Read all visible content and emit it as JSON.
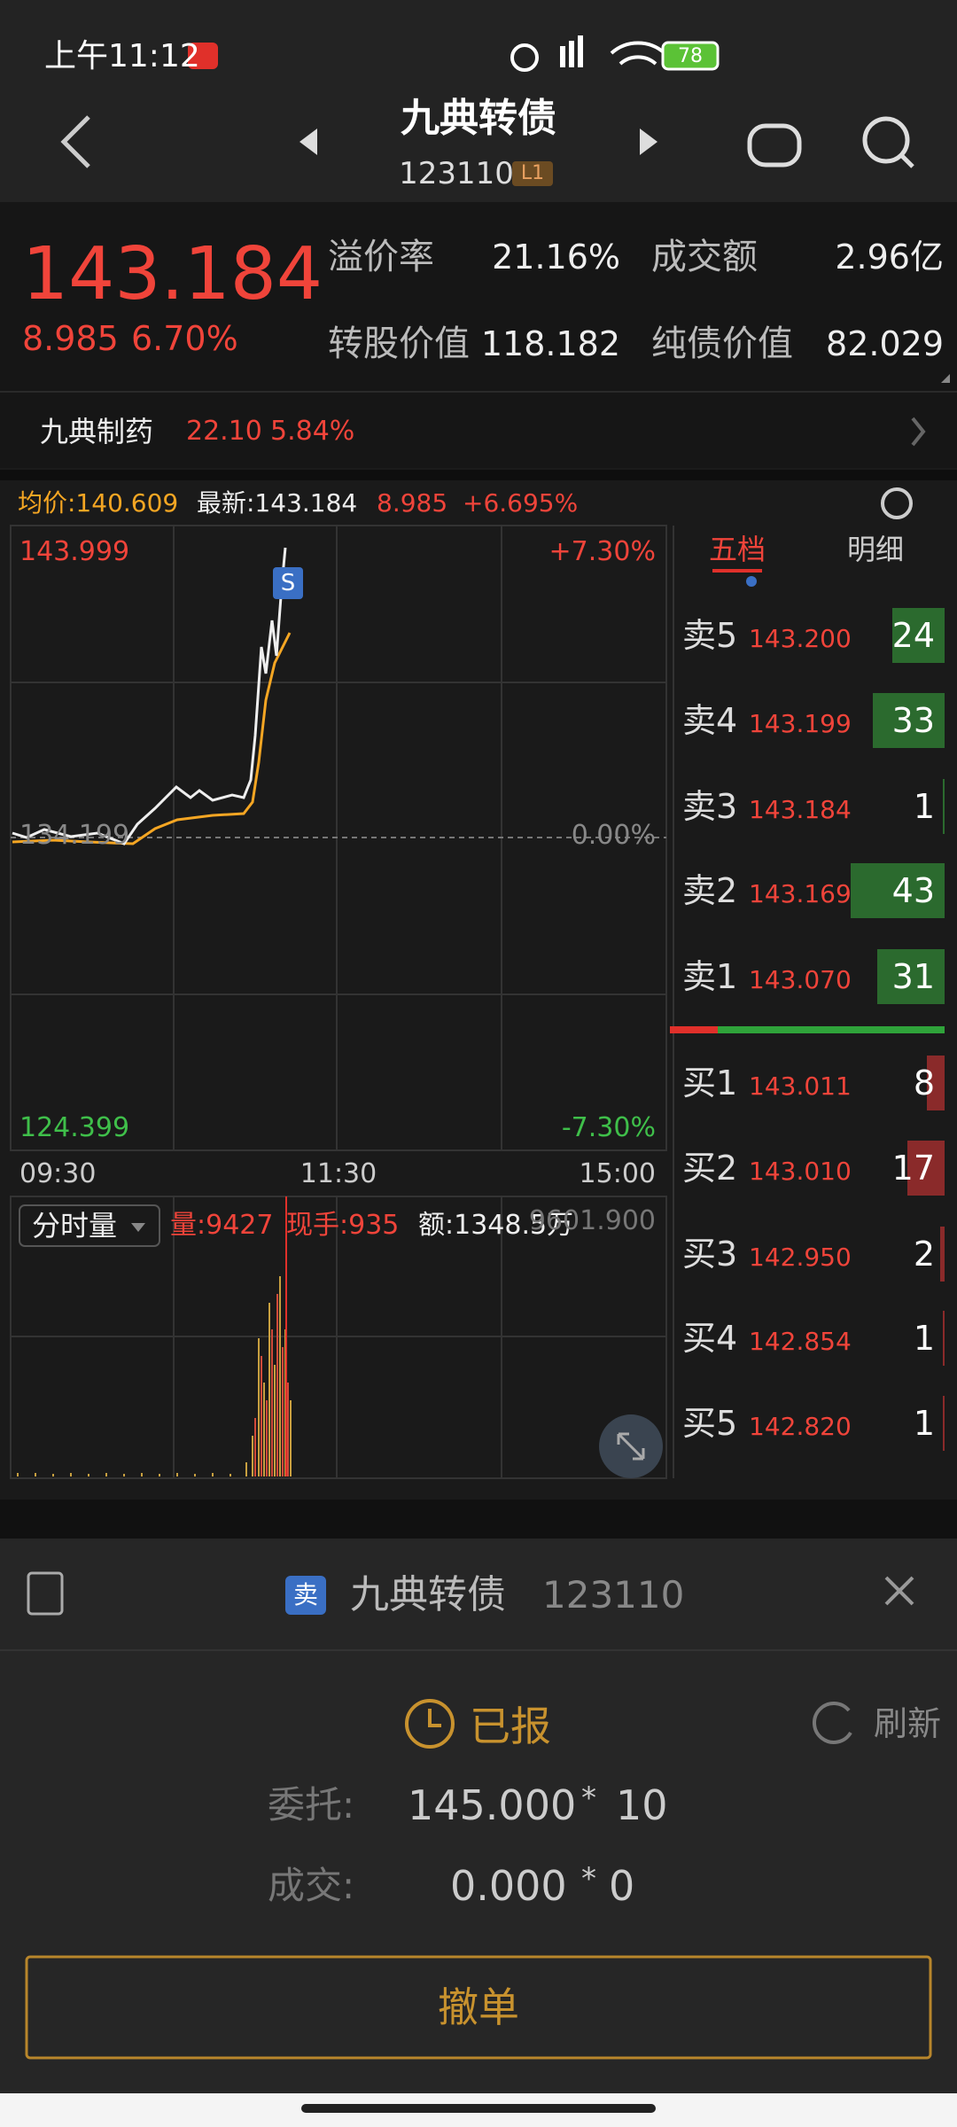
{
  "status_bar": {
    "time": "上午11:12",
    "battery": "78"
  },
  "header": {
    "title": "九典转债",
    "code": "123110",
    "badge": "L1"
  },
  "quote": {
    "price": "143.184",
    "change": "8.985",
    "change_pct": "6.70%",
    "stats": [
      {
        "label": "溢价率",
        "value": "21.16%"
      },
      {
        "label": "成交额",
        "value": "2.96亿"
      },
      {
        "label": "转股价值",
        "value": "118.182"
      },
      {
        "label": "纯债价值",
        "value": "82.029"
      }
    ]
  },
  "underlying": {
    "name": "九典制药",
    "price": "22.10",
    "change_pct": "5.84%"
  },
  "chart": {
    "info": {
      "avg": "均价:140.609",
      "latest": "最新:143.184",
      "change": "8.985",
      "change_pct": "+6.695%"
    },
    "y_labels": {
      "top": "143.999",
      "top_pct": "+7.30%",
      "mid": "134.199",
      "mid_pct": "0.00%",
      "bottom": "124.399",
      "bottom_pct": "-7.30%"
    },
    "x_labels": [
      "09:30",
      "11:30",
      "15:00"
    ],
    "volume": {
      "mode": "分时量",
      "volume": "量:9427",
      "current": "现手:935",
      "amount": "额:1348.5万",
      "max": "9601.900"
    }
  },
  "order_book": {
    "tabs": [
      "五档",
      "明细"
    ],
    "sell": [
      {
        "label": "卖5",
        "price": "143.200",
        "qty": 24
      },
      {
        "label": "卖4",
        "price": "143.199",
        "qty": 33
      },
      {
        "label": "卖3",
        "price": "143.184",
        "qty": 1
      },
      {
        "label": "卖2",
        "price": "143.169",
        "qty": 43
      },
      {
        "label": "卖1",
        "price": "143.070",
        "qty": 31
      }
    ],
    "buy": [
      {
        "label": "买1",
        "price": "143.011",
        "qty": 8
      },
      {
        "label": "买2",
        "price": "143.010",
        "qty": 17
      },
      {
        "label": "买3",
        "price": "142.950",
        "qty": 2
      },
      {
        "label": "买4",
        "price": "142.854",
        "qty": 1
      },
      {
        "label": "买5",
        "price": "142.820",
        "qty": 1
      }
    ]
  },
  "order_dialog": {
    "side": "卖",
    "name": "九典转债",
    "code": "123110",
    "status": "已报",
    "refresh": "刷新",
    "rows": [
      {
        "label": "委托:",
        "price": "145.000",
        "sep": "*",
        "qty": "10"
      },
      {
        "label": "成交:",
        "price": "0.000",
        "sep": "*",
        "qty": "0"
      }
    ],
    "cancel": "撤单"
  }
}
